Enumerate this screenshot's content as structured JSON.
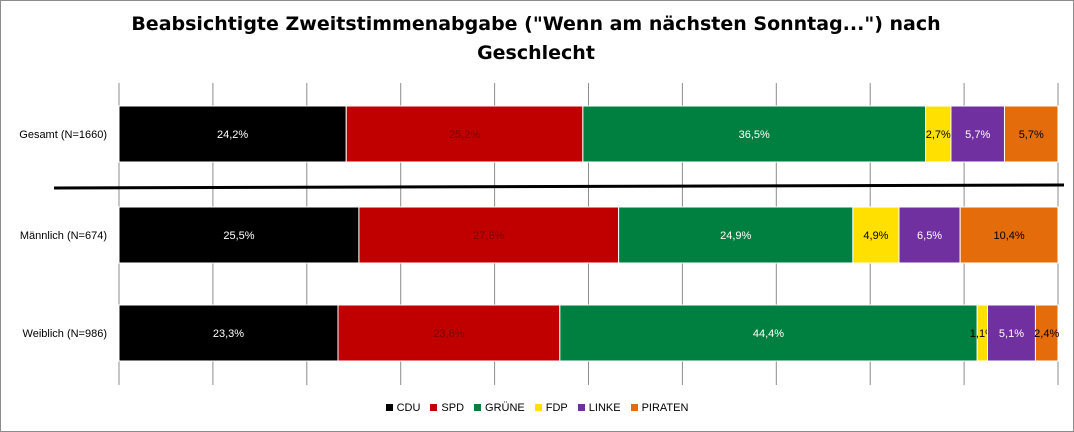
{
  "chart_data": {
    "type": "bar",
    "orientation": "horizontal",
    "stacked": "percent",
    "title": "Beabsichtigte Zweitstimmenabgabe (\"Wenn am nächsten Sonntag...\") nach Geschlecht",
    "categories": [
      "Gesamt (N=1660)",
      "Männlich (N=674)",
      "Weiblich (N=986)"
    ],
    "series": [
      {
        "name": "CDU",
        "color": "#000000",
        "label_color": "#ffffff",
        "values": [
          24.2,
          25.5,
          23.3
        ],
        "labels": [
          "24,2%",
          "25,5%",
          "23,3%"
        ]
      },
      {
        "name": "SPD",
        "color": "#c00000",
        "label_color": "#7a0000",
        "values": [
          25.2,
          27.6,
          23.6
        ],
        "labels": [
          "25,2%",
          "27,6%",
          "23,6%"
        ]
      },
      {
        "name": "GRÜNE",
        "color": "#008040",
        "label_color": "#ffffff",
        "values": [
          36.5,
          24.9,
          44.4
        ],
        "labels": [
          "36,5%",
          "24,9%",
          "44,4%"
        ]
      },
      {
        "name": "FDP",
        "color": "#ffe000",
        "label_color": "#000000",
        "values": [
          2.7,
          4.9,
          1.1
        ],
        "labels": [
          "2,7%",
          "4,9%",
          "1,1%"
        ]
      },
      {
        "name": "LINKE",
        "color": "#7030a0",
        "label_color": "#ffffff",
        "values": [
          5.7,
          6.5,
          5.1
        ],
        "labels": [
          "5,7%",
          "6,5%",
          "5,1%"
        ]
      },
      {
        "name": "PIRATEN",
        "color": "#e46c0a",
        "label_color": "#000000",
        "values": [
          5.7,
          10.4,
          2.4
        ],
        "labels": [
          "5,7%",
          "10,4%",
          "2,4%"
        ]
      }
    ],
    "xlim": [
      0,
      100
    ],
    "grid": true,
    "legend_position": "bottom"
  }
}
